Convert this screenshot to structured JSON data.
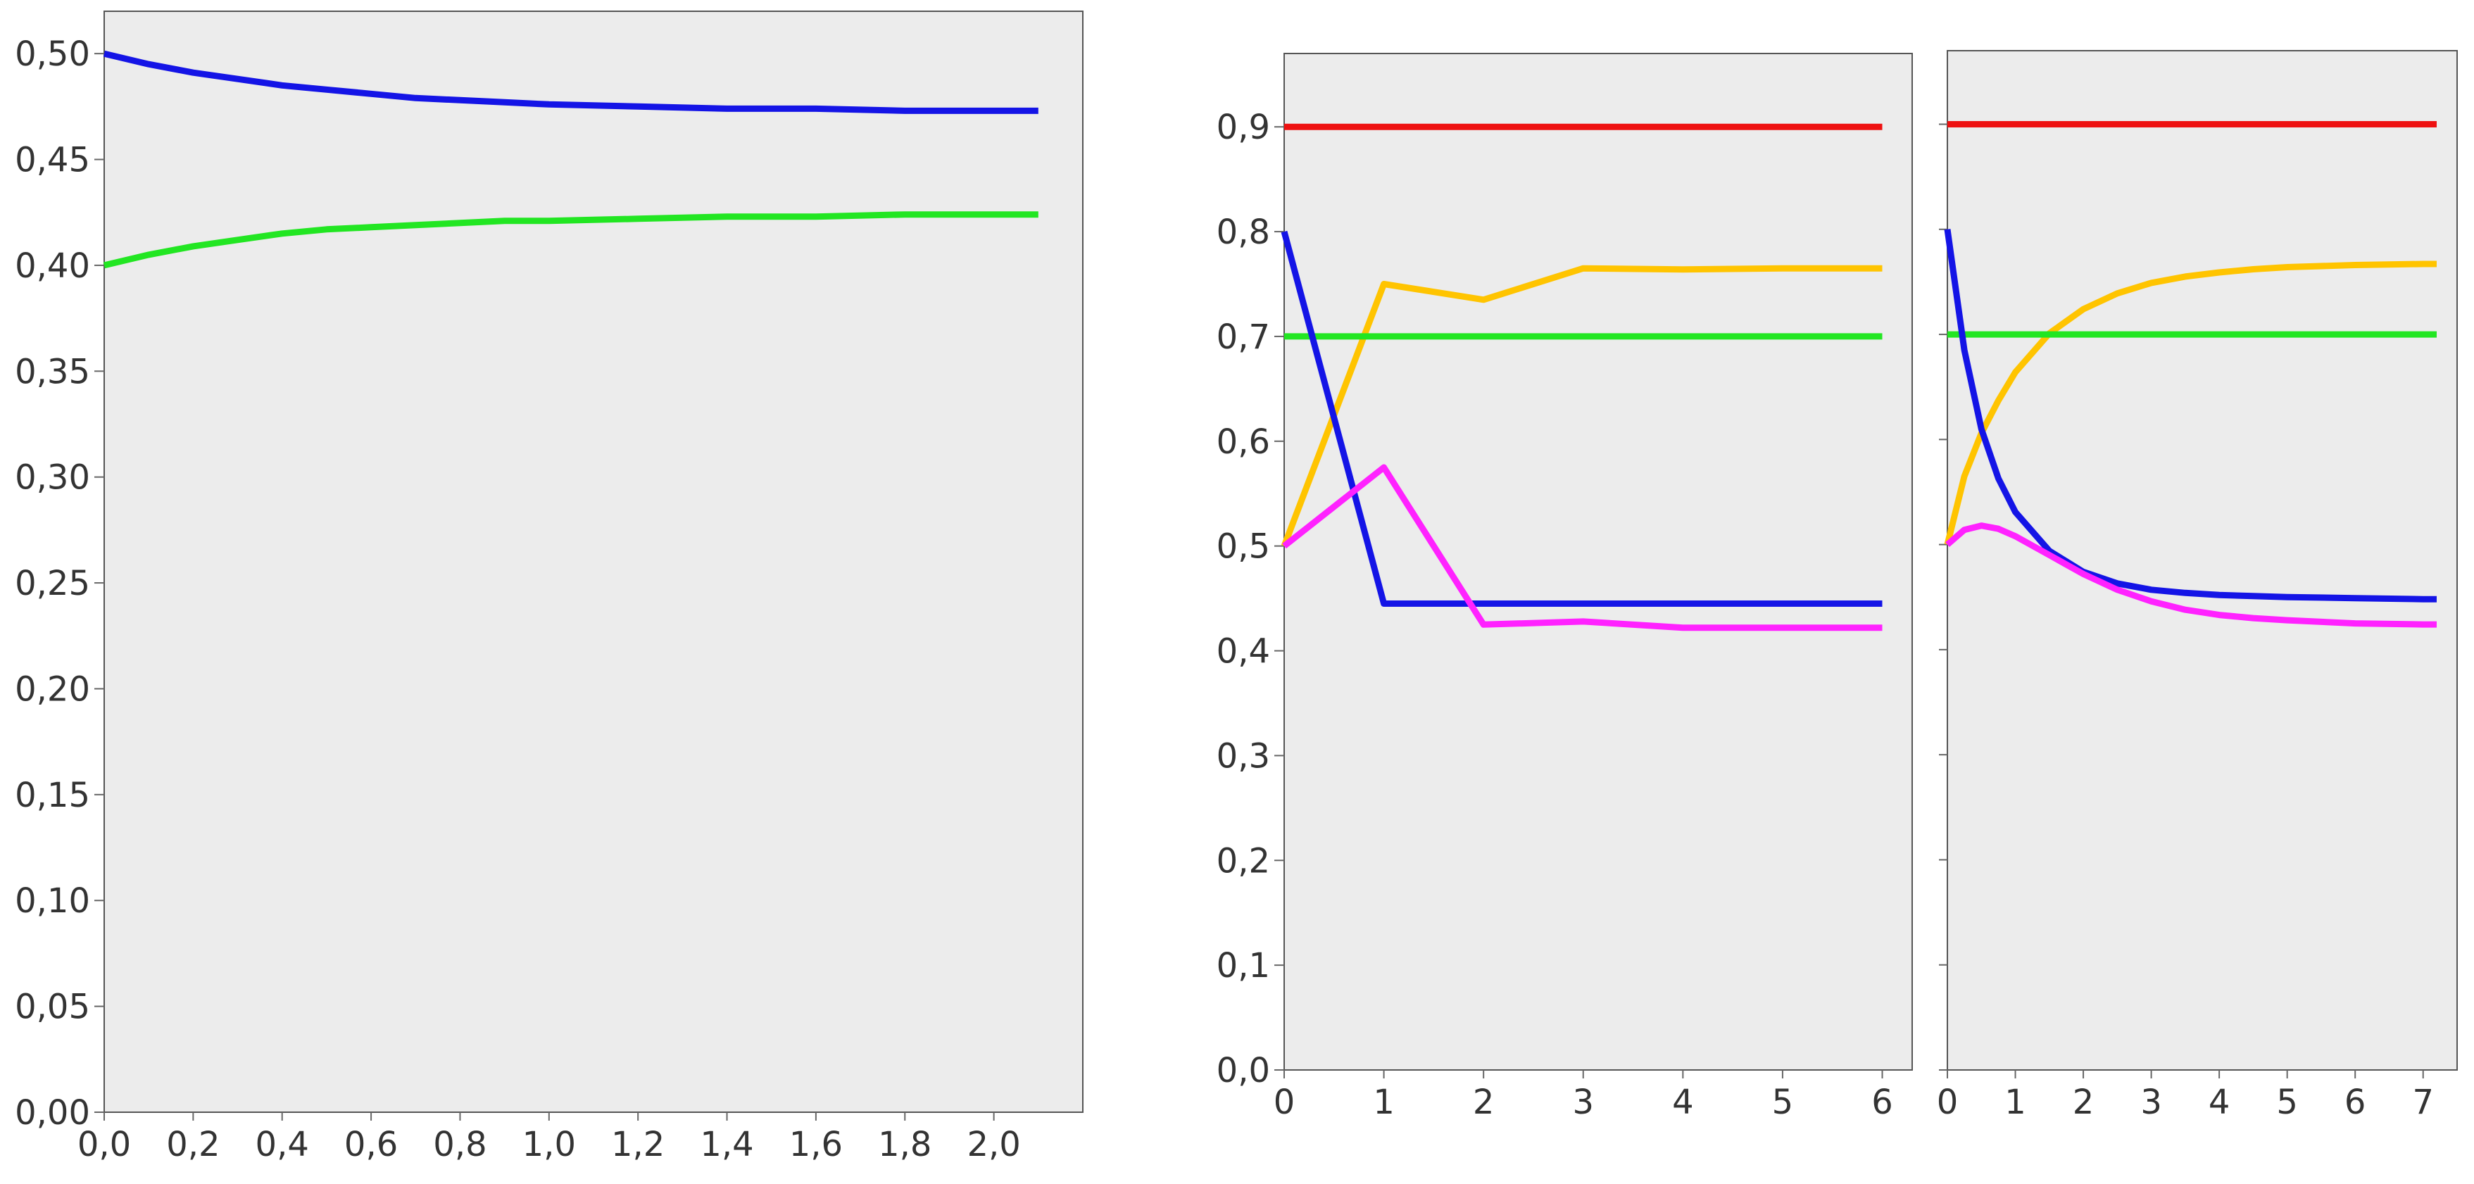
{
  "chart_data": [
    {
      "type": "line",
      "title": "",
      "xlabel": "",
      "ylabel": "",
      "xlim": [
        0,
        2.2
      ],
      "ylim": [
        0,
        0.52
      ],
      "grid": false,
      "x_ticks": [
        "0,0",
        "0,2",
        "0,4",
        "0,6",
        "0,8",
        "1,0",
        "1,2",
        "1,4",
        "1,6",
        "1,8",
        "2,0"
      ],
      "y_ticks": [
        "0,00",
        "0,05",
        "0,10",
        "0,15",
        "0,20",
        "0,25",
        "0,30",
        "0,35",
        "0,40",
        "0,45",
        "0,50"
      ],
      "series": [
        {
          "color": "#1414e6",
          "x": [
            0,
            0.1,
            0.2,
            0.3,
            0.4,
            0.5,
            0.6,
            0.7,
            0.8,
            0.9,
            1.0,
            1.2,
            1.4,
            1.6,
            1.8,
            2.0,
            2.1
          ],
          "y": [
            0.5,
            0.495,
            0.491,
            0.488,
            0.485,
            0.483,
            0.481,
            0.479,
            0.478,
            0.477,
            0.476,
            0.475,
            0.474,
            0.474,
            0.473,
            0.473,
            0.473
          ]
        },
        {
          "color": "#22e622",
          "x": [
            0,
            0.1,
            0.2,
            0.3,
            0.4,
            0.5,
            0.6,
            0.7,
            0.8,
            0.9,
            1.0,
            1.2,
            1.4,
            1.6,
            1.8,
            2.0,
            2.1
          ],
          "y": [
            0.4,
            0.405,
            0.409,
            0.412,
            0.415,
            0.417,
            0.418,
            0.419,
            0.42,
            0.421,
            0.421,
            0.422,
            0.423,
            0.423,
            0.424,
            0.424,
            0.424
          ]
        }
      ]
    },
    {
      "type": "line",
      "title": "",
      "xlabel": "",
      "ylabel": "",
      "xlim": [
        0,
        6.3
      ],
      "ylim": [
        0,
        0.97
      ],
      "grid": false,
      "x_ticks": [
        "0",
        "1",
        "2",
        "3",
        "4",
        "5",
        "6"
      ],
      "y_ticks": [
        "0,0",
        "0,1",
        "0,2",
        "0,3",
        "0,4",
        "0,5",
        "0,6",
        "0,7",
        "0,8",
        "0,9"
      ],
      "series": [
        {
          "color": "#ee1111",
          "x": [
            0,
            6
          ],
          "y": [
            0.9,
            0.9
          ]
        },
        {
          "color": "#ffc400",
          "x": [
            0,
            1,
            2,
            3,
            4,
            5,
            6
          ],
          "y": [
            0.5,
            0.75,
            0.735,
            0.765,
            0.764,
            0.765,
            0.765
          ]
        },
        {
          "color": "#22e622",
          "x": [
            0,
            6
          ],
          "y": [
            0.7,
            0.7
          ]
        },
        {
          "color": "#1414e6",
          "x": [
            0,
            1,
            2,
            3,
            4,
            5,
            6
          ],
          "y": [
            0.8,
            0.445,
            0.445,
            0.445,
            0.445,
            0.445,
            0.445
          ]
        },
        {
          "color": "#ff22ff",
          "x": [
            0,
            1,
            2,
            3,
            4,
            5,
            6
          ],
          "y": [
            0.5,
            0.575,
            0.425,
            0.428,
            0.422,
            0.422,
            0.422
          ]
        }
      ]
    },
    {
      "type": "line",
      "title": "",
      "xlabel": "",
      "ylabel": "",
      "xlim": [
        0,
        7.5
      ],
      "ylim": [
        0,
        0.97
      ],
      "grid": false,
      "x_ticks": [
        "0",
        "1",
        "2",
        "3",
        "4",
        "5",
        "6",
        "7"
      ],
      "y_ticks": [],
      "series": [
        {
          "color": "#ee1111",
          "x": [
            0,
            7.2
          ],
          "y": [
            0.9,
            0.9
          ]
        },
        {
          "color": "#ffc400",
          "x": [
            0,
            0.25,
            0.5,
            0.75,
            1,
            1.5,
            2,
            2.5,
            3,
            3.5,
            4,
            4.5,
            5,
            6,
            7,
            7.2
          ],
          "y": [
            0.5,
            0.565,
            0.606,
            0.637,
            0.664,
            0.701,
            0.724,
            0.739,
            0.749,
            0.755,
            0.759,
            0.762,
            0.764,
            0.766,
            0.767,
            0.767
          ]
        },
        {
          "color": "#22e622",
          "x": [
            0,
            7.2
          ],
          "y": [
            0.7,
            0.7
          ]
        },
        {
          "color": "#1414e6",
          "x": [
            0,
            0.25,
            0.5,
            0.75,
            1,
            1.5,
            2,
            2.5,
            3,
            3.5,
            4,
            4.5,
            5,
            6,
            7,
            7.2
          ],
          "y": [
            0.8,
            0.685,
            0.61,
            0.563,
            0.531,
            0.494,
            0.474,
            0.463,
            0.457,
            0.454,
            0.452,
            0.451,
            0.45,
            0.449,
            0.448,
            0.448
          ]
        },
        {
          "color": "#ff22ff",
          "x": [
            0,
            0.25,
            0.5,
            0.75,
            1,
            1.5,
            2,
            2.5,
            3,
            3.5,
            4,
            4.5,
            5,
            6,
            7,
            7.2
          ],
          "y": [
            0.5,
            0.514,
            0.518,
            0.515,
            0.508,
            0.49,
            0.472,
            0.457,
            0.446,
            0.438,
            0.433,
            0.43,
            0.428,
            0.425,
            0.424,
            0.424
          ]
        }
      ]
    }
  ]
}
